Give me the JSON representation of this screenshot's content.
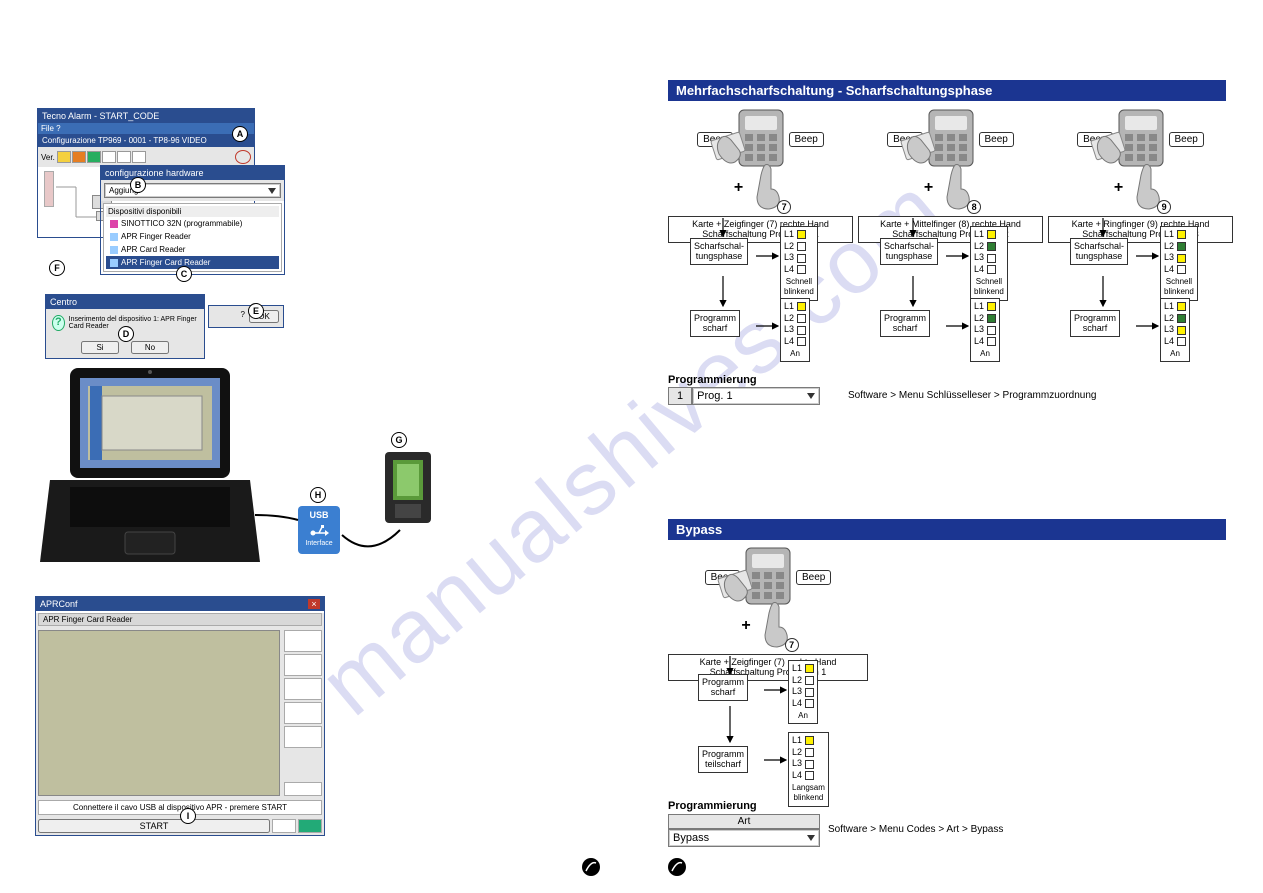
{
  "watermark": "manualshives.com",
  "left": {
    "win1_title": "Tecno Alarm - START_CODE",
    "win1_sub": "Configurazione TP969 - 0001 - TP8-96 VIDEO",
    "win1_ver": "Ver.",
    "win2_title": "configurazione hardware",
    "win2_add": "Aggiungi",
    "win2_avail": "Dispositivi disponibili",
    "dev1": "SINOTTICO 32N (programmabile)",
    "dev2": "APR Finger Reader",
    "dev3": "APR Card Reader",
    "dev4": "APR Finger Card Reader",
    "confirm_title": "Centro",
    "confirm_msg": "Inserimento del dispositivo 1: APR Finger Card Reader",
    "confirm_yes": "Si",
    "confirm_no": "No",
    "confirm_ok": "OK",
    "usb_label1": "USB",
    "usb_label2": "Interface",
    "app3_title": "APRConf",
    "app3_sub": "APR Finger Card Reader",
    "app3_connect": "Connettere il cavo USB al dispositivo APR - premere START",
    "app3_start": "START",
    "labels": {
      "A": "A",
      "B": "B",
      "C": "C",
      "D": "D",
      "E": "E",
      "F": "F",
      "G": "G",
      "H": "H",
      "I": "I"
    }
  },
  "right": {
    "sec1_title": "Mehrfachscharfschaltung - Scharfschaltungsphase",
    "sec2_title": "Bypass",
    "beep": "Beep",
    "groups": [
      {
        "caption1": "Karte + Zeigfinger (7) rechte Hand",
        "caption2": "Scharfschaltung Programm 1",
        "num": "7"
      },
      {
        "caption1": "Karte + Mittelfinger (8) rechte Hand",
        "caption2": "Scharfschaltung Programm 2",
        "num": "8"
      },
      {
        "caption1": "Karte + Ringfinger (9) rechte Hand",
        "caption2": "Scharfschaltung Programm 3",
        "num": "9"
      }
    ],
    "phase": "Scharfschal-\ntungsphase",
    "prog_scharf": "Programm\nscharf",
    "prog_teil": "Programm\nteilscharf",
    "schnell": "Schnell\nblinkend",
    "an": "An",
    "langsam": "Langsam\nblinkend",
    "leds": {
      "row1": [
        {
          "L1": "#fff200",
          "L2": "#ffffff",
          "L3": "#ffffff",
          "L4": "#ffffff"
        },
        {
          "L1": "#fff200",
          "L2": "#2e7d32",
          "L3": "#ffffff",
          "L4": "#ffffff"
        },
        {
          "L1": "#fff200",
          "L2": "#2e7d32",
          "L3": "#fff200",
          "L4": "#ffffff"
        }
      ],
      "row2": [
        {
          "L1": "#fff200",
          "L2": "#ffffff",
          "L3": "#ffffff",
          "L4": "#ffffff"
        },
        {
          "L1": "#fff200",
          "L2": "#2e7d32",
          "L3": "#ffffff",
          "L4": "#ffffff"
        },
        {
          "L1": "#fff200",
          "L2": "#2e7d32",
          "L3": "#fff200",
          "L4": "#ffffff"
        }
      ],
      "bypass1": {
        "L1": "#fff200",
        "L2": "#ffffff",
        "L3": "#ffffff",
        "L4": "#ffffff"
      },
      "bypass2": {
        "L1": "#fff200",
        "L2": "#ffffff",
        "L3": "#ffffff",
        "L4": "#ffffff"
      }
    },
    "programmierung": "Programmierung",
    "prog_dropdown_num": "1",
    "prog_dropdown_val": "Prog. 1",
    "prog_path": "Software > Menu Schlüsselleser > Programmzuordnung",
    "art": "Art",
    "bypass_dropdown": "Bypass",
    "bypass_path": "Software > Menu Codes > Art > Bypass",
    "bypass_caption1": "Karte + Zeigfinger (7) rechte Hand",
    "bypass_caption2": "Scharfschaltung Programm 1",
    "bypass_num": "7"
  },
  "colors": {
    "blue_bar": "#1b3591",
    "win_blue": "#2a4d8f",
    "grey_body": "#e6e6e6",
    "khaki": "#bfbf9f",
    "usb_blue": "#3b7fd1"
  }
}
